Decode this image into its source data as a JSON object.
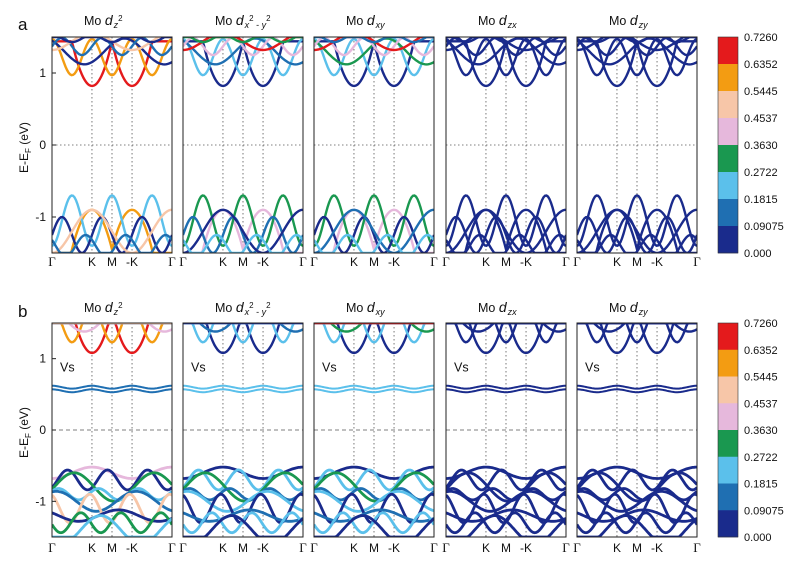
{
  "figure": {
    "panel_letters": [
      "a",
      "b"
    ],
    "ylabel_parts": [
      "E-E",
      "F",
      " (eV)"
    ],
    "defect_label": "Vs"
  },
  "colorbar": {
    "labels": [
      "0.7260",
      "0.6352",
      "0.5445",
      "0.4537",
      "0.3630",
      "0.2722",
      "0.1815",
      "0.09075",
      "0.000"
    ],
    "colors": [
      "#e41a1c",
      "#f39c12",
      "#f7c6a8",
      "#e6b8dc",
      "#1a9850",
      "#5bc0eb",
      "#1f6fb2",
      "#1a2b8c"
    ]
  },
  "chart_data": [
    {
      "type": "line",
      "row": "a",
      "orbitals": [
        {
          "prefix": "Mo",
          "d": "d",
          "sub": "z",
          "sup": "2"
        },
        {
          "prefix": "Mo",
          "d": "d",
          "sub": "x",
          "sup": "2",
          "mid": " - ",
          "sub2": "y",
          "sup2": "2"
        },
        {
          "prefix": "Mo",
          "d": "d",
          "sub": "xy"
        },
        {
          "prefix": "Mo",
          "d": "d",
          "sub": "zx"
        },
        {
          "prefix": "Mo",
          "d": "d",
          "sub": "zy"
        }
      ],
      "xticks": [
        "Γ",
        "K",
        "M",
        "-K",
        "Γ"
      ],
      "xtick_positions": [
        0,
        0.333,
        0.5,
        0.667,
        1
      ],
      "ylim": [
        -1.5,
        1.5
      ],
      "yticks": [
        -1,
        0,
        1
      ],
      "fermi_level": 0,
      "bands_eV": {
        "conduction_minimum_at_K": 0.82,
        "conduction_top_region": [
          1.2,
          1.5
        ],
        "valence_maximum_at_K": -0.9,
        "valence_region": [
          -1.5,
          -0.9
        ]
      },
      "dominant_weight_dz2_conduction": 0.726
    },
    {
      "type": "line",
      "row": "b",
      "orbitals": [
        {
          "prefix": "Mo",
          "d": "d",
          "sub": "z",
          "sup": "2"
        },
        {
          "prefix": "Mo",
          "d": "d",
          "sub": "x",
          "sup": "2",
          "mid": " - ",
          "sub2": "y",
          "sup2": "2"
        },
        {
          "prefix": "Mo",
          "d": "d",
          "sub": "xy"
        },
        {
          "prefix": "Mo",
          "d": "d",
          "sub": "zx"
        },
        {
          "prefix": "Mo",
          "d": "d",
          "sub": "zy"
        }
      ],
      "xticks": [
        "Γ",
        "K",
        "M",
        "-K",
        "Γ"
      ],
      "xtick_positions": [
        0,
        0.333,
        0.5,
        0.667,
        1
      ],
      "ylim": [
        -1.5,
        1.5
      ],
      "yticks": [
        -1,
        0,
        1
      ],
      "fermi_level": 0,
      "defect_states_eV": [
        0.55,
        0.6
      ],
      "bands_eV": {
        "conduction_minimum_at_K": 1.08,
        "valence_maximum": -0.55,
        "valence_region": [
          -1.5,
          -0.55
        ]
      }
    }
  ]
}
